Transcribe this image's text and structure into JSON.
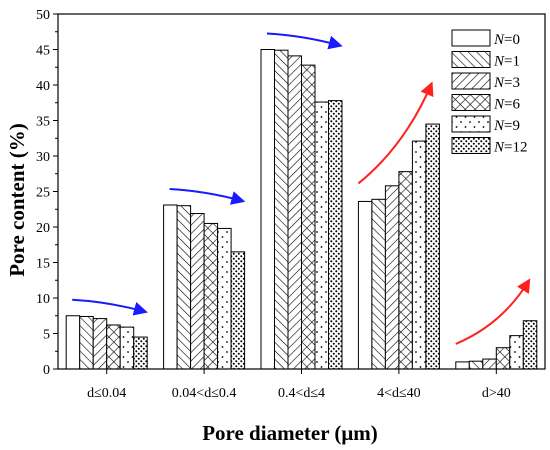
{
  "chart_data": {
    "type": "bar",
    "title": "",
    "xlabel": "Pore diameter (μm)",
    "ylabel": "Pore content (%)",
    "ylim": [
      0,
      50
    ],
    "yticks": [
      0,
      5,
      10,
      15,
      20,
      25,
      30,
      35,
      40,
      45,
      50
    ],
    "categories": [
      "d≤0.04",
      "0.04<d≤0.4",
      "0.4<d≤4",
      "4<d≤40",
      "d>40"
    ],
    "legend_position": "top-right",
    "series": [
      {
        "name": "N=0",
        "prefix": "N",
        "suffix": "=0",
        "pattern": "none",
        "values": [
          7.5,
          23.1,
          45.0,
          23.6,
          1.0
        ]
      },
      {
        "name": "N=1",
        "prefix": "N",
        "suffix": "=1",
        "pattern": "hatch-forward",
        "values": [
          7.4,
          23.0,
          44.9,
          23.9,
          1.1
        ]
      },
      {
        "name": "N=3",
        "prefix": "N",
        "suffix": "=3",
        "pattern": "hatch-back",
        "values": [
          7.1,
          21.9,
          44.1,
          25.8,
          1.4
        ]
      },
      {
        "name": "N=6",
        "prefix": "N",
        "suffix": "=6",
        "pattern": "crosshatch",
        "values": [
          6.2,
          20.5,
          42.8,
          27.8,
          3.0
        ]
      },
      {
        "name": "N=9",
        "prefix": "N",
        "suffix": "=9",
        "pattern": "sparse-dots",
        "values": [
          5.9,
          19.8,
          37.6,
          32.1,
          4.7
        ]
      },
      {
        "name": "N=12",
        "prefix": "N",
        "suffix": "=12",
        "pattern": "dense-dots",
        "values": [
          4.5,
          16.5,
          37.8,
          34.5,
          6.8
        ]
      }
    ],
    "trend_arrows": [
      {
        "category": 0,
        "direction": "down",
        "color": "#1a1aff"
      },
      {
        "category": 1,
        "direction": "down",
        "color": "#1a1aff"
      },
      {
        "category": 2,
        "direction": "down",
        "color": "#1a1aff"
      },
      {
        "category": 3,
        "direction": "up",
        "color": "#ff2020"
      },
      {
        "category": 4,
        "direction": "up",
        "color": "#ff2020"
      }
    ]
  }
}
